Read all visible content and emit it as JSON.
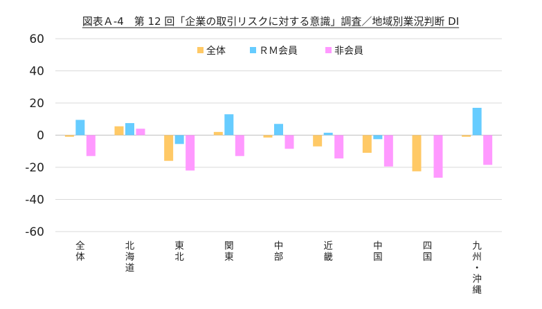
{
  "chart_data": {
    "type": "bar",
    "title": "図表Ａ-4　第 12 回「企業の取引リスクに対する意識」調査／地域別業況判断 DI",
    "xlabel": "",
    "ylabel": "",
    "ylim": [
      -60,
      60
    ],
    "yticks": [
      60,
      40,
      20,
      0,
      -20,
      -40,
      -60
    ],
    "ytick_labels": [
      "60",
      "40",
      "20",
      "0",
      "-20",
      "-40",
      "-60"
    ],
    "grid": true,
    "legend_position": "top-center",
    "categories": [
      "全体",
      "北海道",
      "東北",
      "関東",
      "中部",
      "近畿",
      "中国",
      "四国",
      "九州・沖縄"
    ],
    "series": [
      {
        "name": "全体",
        "color": "#FFC966",
        "values": [
          -1,
          5.5,
          -16,
          2,
          -1.5,
          -7,
          -11,
          -22.5,
          -1
        ]
      },
      {
        "name": "ＲＭ会員",
        "color": "#66CCFF",
        "values": [
          9.5,
          7.5,
          -5.5,
          13,
          7,
          1.5,
          -2.5,
          0,
          17
        ]
      },
      {
        "name": "非会員",
        "color": "#FF99FF",
        "values": [
          -13,
          4,
          -22,
          -13,
          -8.5,
          -14.5,
          -19.5,
          -26.5,
          -18.5
        ]
      }
    ]
  }
}
